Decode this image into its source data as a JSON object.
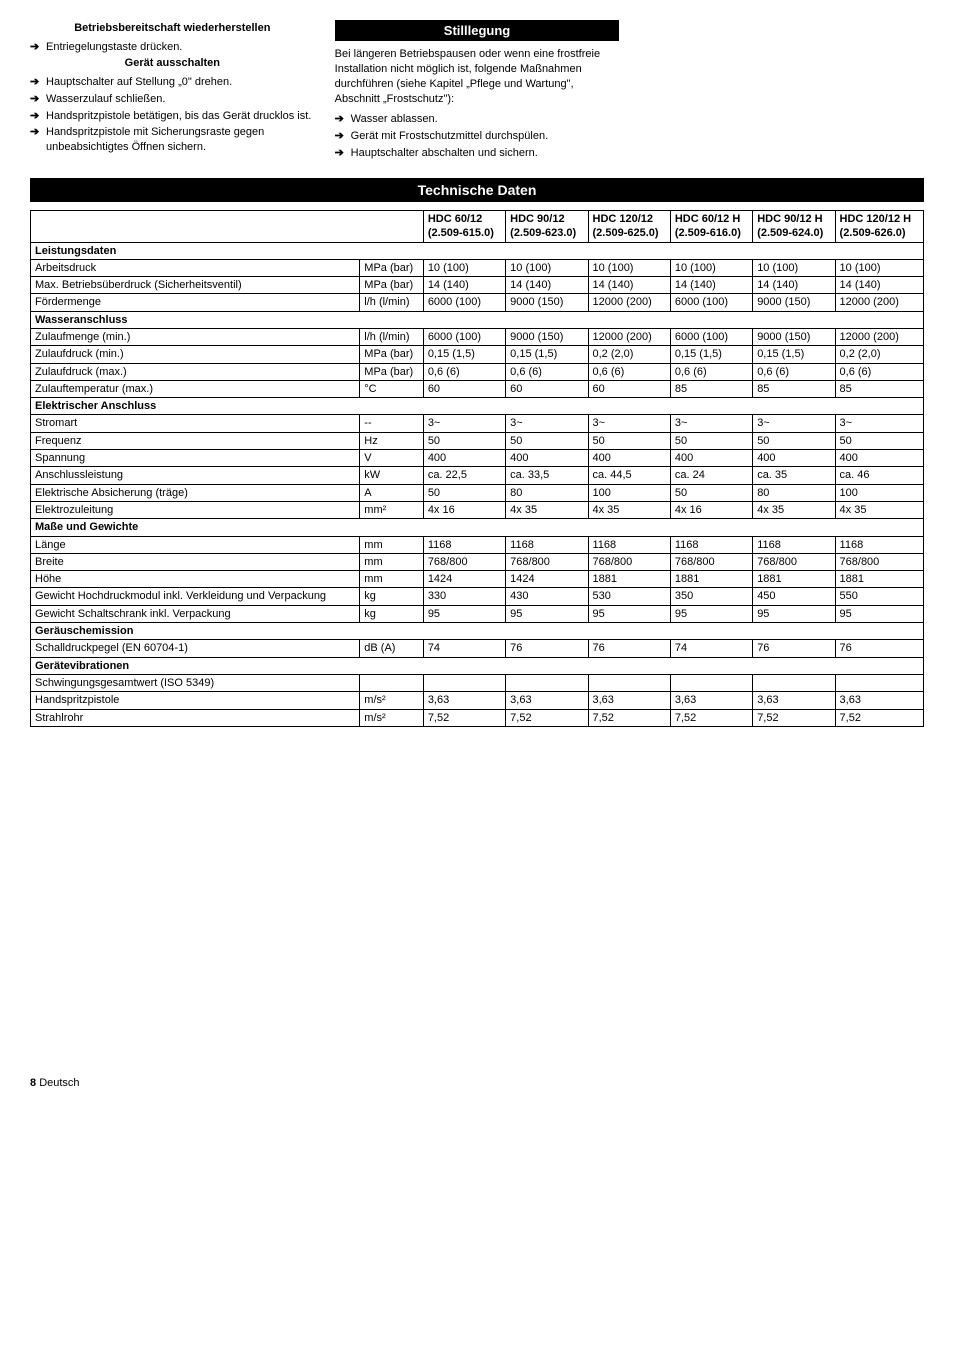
{
  "left": {
    "h1": "Betriebsbereitschaft wiederherstellen",
    "i1": "Entriegelungstaste drücken.",
    "h2": "Gerät ausschalten",
    "i2": "Hauptschalter auf Stellung „0\" drehen.",
    "i3": "Wasserzulauf schließen.",
    "i4": "Handspritzpistole betätigen, bis das Gerät drucklos ist.",
    "i5": "Handspritzpistole mit Sicherungsraste gegen unbeabsichtigtes Öffnen sichern."
  },
  "right": {
    "h1": "Stilllegung",
    "p1": "Bei längeren Betriebspausen oder wenn eine frostfreie Installation nicht möglich ist, folgende Maßnahmen durchführen (siehe Kapitel „Pflege und Wartung\", Abschnitt „Frostschutz\"):",
    "i1": "Wasser ablassen.",
    "i2": "Gerät mit Frostschutzmittel durchspülen.",
    "i3": "Hauptschalter abschalten und sichern."
  },
  "tech_title": "Technische Daten",
  "cols": {
    "c1a": "HDC 60/12",
    "c1b": "(2.509-615.0)",
    "c2a": "HDC 90/12",
    "c2b": "(2.509-623.0)",
    "c3a": "HDC 120/12",
    "c3b": "(2.509-625.0)",
    "c4a": "HDC 60/12 H",
    "c4b": "(2.509-616.0)",
    "c5a": "HDC 90/12 H",
    "c5b": "(2.509-624.0)",
    "c6a": "HDC 120/12 H",
    "c6b": "(2.509-626.0)"
  },
  "sec": {
    "leistung": "Leistungsdaten",
    "wasser": "Wasseranschluss",
    "elektrisch": "Elektrischer Anschluss",
    "masse": "Maße und Gewichte",
    "geraeusch": "Geräuschemission",
    "vibration": "Gerätevibrationen"
  },
  "rows": {
    "arbeitsdruck": {
      "l": "Arbeitsdruck",
      "u": "MPa (bar)",
      "v": [
        "10 (100)",
        "10 (100)",
        "10 (100)",
        "10 (100)",
        "10 (100)",
        "10 (100)"
      ]
    },
    "maxbetrieb": {
      "l": "Max. Betriebsüberdruck (Sicherheitsventil)",
      "u": "MPa (bar)",
      "v": [
        "14 (140)",
        "14 (140)",
        "14 (140)",
        "14 (140)",
        "14 (140)",
        "14 (140)"
      ]
    },
    "foerder": {
      "l": "Fördermenge",
      "u": "l/h (l/min)",
      "v": [
        "6000 (100)",
        "9000 (150)",
        "12000 (200)",
        "6000 (100)",
        "9000 (150)",
        "12000 (200)"
      ]
    },
    "zulaufmenge": {
      "l": "Zulaufmenge (min.)",
      "u": "l/h (l/min)",
      "v": [
        "6000 (100)",
        "9000 (150)",
        "12000 (200)",
        "6000 (100)",
        "9000 (150)",
        "12000 (200)"
      ]
    },
    "zulaufmin": {
      "l": "Zulaufdruck (min.)",
      "u": "MPa (bar)",
      "v": [
        "0,15 (1,5)",
        "0,15 (1,5)",
        "0,2 (2,0)",
        "0,15 (1,5)",
        "0,15 (1,5)",
        "0,2 (2,0)"
      ]
    },
    "zulaufmax": {
      "l": "Zulaufdruck (max.)",
      "u": "MPa (bar)",
      "v": [
        "0,6 (6)",
        "0,6 (6)",
        "0,6 (6)",
        "0,6 (6)",
        "0,6 (6)",
        "0,6 (6)"
      ]
    },
    "zulauftemp": {
      "l": "Zulauftemperatur (max.)",
      "u": "°C",
      "v": [
        "60",
        "60",
        "60",
        "85",
        "85",
        "85"
      ]
    },
    "stromart": {
      "l": "Stromart",
      "u": "--",
      "v": [
        "3~",
        "3~",
        "3~",
        "3~",
        "3~",
        "3~"
      ]
    },
    "frequenz": {
      "l": "Frequenz",
      "u": "Hz",
      "v": [
        "50",
        "50",
        "50",
        "50",
        "50",
        "50"
      ]
    },
    "spannung": {
      "l": "Spannung",
      "u": "V",
      "v": [
        "400",
        "400",
        "400",
        "400",
        "400",
        "400"
      ]
    },
    "anschluss": {
      "l": "Anschlussleistung",
      "u": "kW",
      "v": [
        "ca. 22,5",
        "ca. 33,5",
        "ca. 44,5",
        "ca. 24",
        "ca. 35",
        "ca. 46"
      ]
    },
    "absicherung": {
      "l": "Elektrische Absicherung (träge)",
      "u": "A",
      "v": [
        "50",
        "80",
        "100",
        "50",
        "80",
        "100"
      ]
    },
    "elektrozul": {
      "l": "Elektrozuleitung",
      "u": "mm²",
      "v": [
        "4x 16",
        "4x 35",
        "4x 35",
        "4x 16",
        "4x 35",
        "4x 35"
      ]
    },
    "laenge": {
      "l": "Länge",
      "u": "mm",
      "v": [
        "1168",
        "1168",
        "1168",
        "1168",
        "1168",
        "1168"
      ]
    },
    "breite": {
      "l": "Breite",
      "u": "mm",
      "v": [
        "768/800",
        "768/800",
        "768/800",
        "768/800",
        "768/800",
        "768/800"
      ]
    },
    "hoehe": {
      "l": "Höhe",
      "u": "mm",
      "v": [
        "1424",
        "1424",
        "1881",
        "1881",
        "1881",
        "1881"
      ]
    },
    "gewichthd": {
      "l": "Gewicht Hochdruckmodul inkl. Verkleidung und Verpackung",
      "u": "kg",
      "v": [
        "330",
        "430",
        "530",
        "350",
        "450",
        "550"
      ]
    },
    "gewichtss": {
      "l": "Gewicht Schaltschrank inkl. Verpackung",
      "u": "kg",
      "v": [
        "95",
        "95",
        "95",
        "95",
        "95",
        "95"
      ]
    },
    "schalldruck": {
      "l": "Schalldruckpegel (EN 60704-1)",
      "u": "dB (A)",
      "v": [
        "74",
        "76",
        "76",
        "74",
        "76",
        "76"
      ]
    },
    "schwingung": {
      "l": "Schwingungsgesamtwert (ISO 5349)",
      "u": "",
      "v": [
        "",
        "",
        "",
        "",
        "",
        ""
      ]
    },
    "handspritz": {
      "l": "Handspritzpistole",
      "u": "m/s²",
      "v": [
        "3,63",
        "3,63",
        "3,63",
        "3,63",
        "3,63",
        "3,63"
      ]
    },
    "strahlrohr": {
      "l": "Strahlrohr",
      "u": "m/s²",
      "v": [
        "7,52",
        "7,52",
        "7,52",
        "7,52",
        "7,52",
        "7,52"
      ]
    }
  },
  "footer": {
    "page": "8",
    "lang": "Deutsch"
  }
}
